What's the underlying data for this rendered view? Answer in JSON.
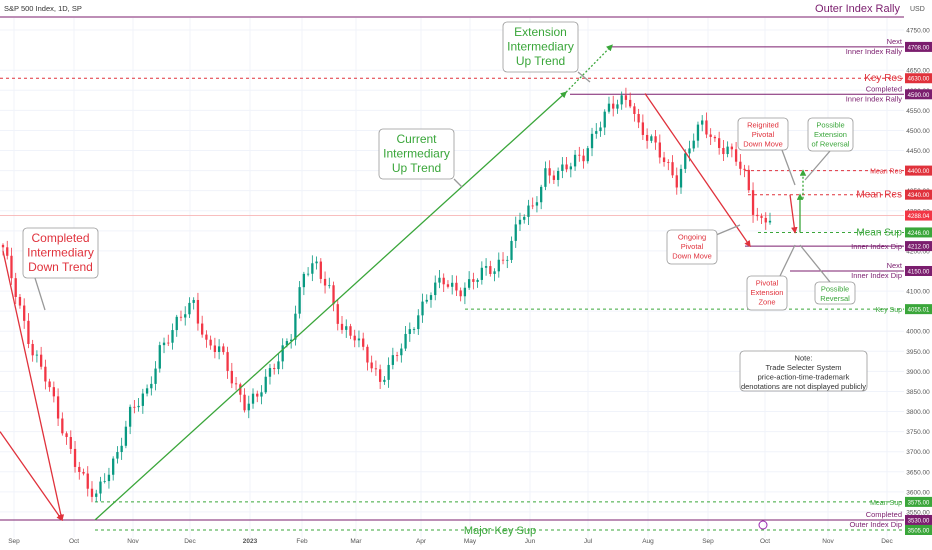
{
  "header": {
    "symbol_label": "S&P 500 Index, 1D, SP",
    "currency": "USD"
  },
  "colors": {
    "up": "#089981",
    "down": "#f23645",
    "green_ann": "#3aa63a",
    "red_ann": "#e0323c",
    "purple": "#7b1e6e",
    "grid": "#f0f3fa",
    "axis_text": "#555555"
  },
  "chart_data": {
    "type": "candlestick",
    "ylim": [
      3505,
      4780
    ],
    "y_ticks": [
      3550,
      3600,
      3650,
      3700,
      3750,
      3800,
      3850,
      3900,
      3950,
      4000,
      4050,
      4100,
      4200,
      4250,
      4300,
      4350,
      4400,
      4450,
      4500,
      4550,
      4600,
      4650,
      4750
    ],
    "x_ticks": [
      "Sep",
      "Oct",
      "Nov",
      "Dec",
      "2023",
      "Feb",
      "Mar",
      "Apr",
      "May",
      "Jun",
      "Jul",
      "Aug",
      "Sep",
      "Oct",
      "Nov",
      "Dec"
    ],
    "anchors": [
      {
        "i": 0,
        "c": 4200
      },
      {
        "i": 3,
        "c": 4100
      },
      {
        "i": 7,
        "c": 3950
      },
      {
        "i": 10,
        "c": 3880
      },
      {
        "i": 13,
        "c": 3790
      },
      {
        "i": 17,
        "c": 3680
      },
      {
        "i": 20,
        "c": 3600
      },
      {
        "i": 22,
        "c": 3585
      },
      {
        "i": 24,
        "c": 3640
      },
      {
        "i": 27,
        "c": 3700
      },
      {
        "i": 30,
        "c": 3790
      },
      {
        "i": 34,
        "c": 3850
      },
      {
        "i": 37,
        "c": 3960
      },
      {
        "i": 40,
        "c": 3995
      },
      {
        "i": 43,
        "c": 4050
      },
      {
        "i": 45,
        "c": 4075
      },
      {
        "i": 48,
        "c": 3970
      },
      {
        "i": 51,
        "c": 3950
      },
      {
        "i": 54,
        "c": 3880
      },
      {
        "i": 57,
        "c": 3825
      },
      {
        "i": 60,
        "c": 3835
      },
      {
        "i": 63,
        "c": 3890
      },
      {
        "i": 66,
        "c": 3960
      },
      {
        "i": 68,
        "c": 4000
      },
      {
        "i": 71,
        "c": 4140
      },
      {
        "i": 74,
        "c": 4160
      },
      {
        "i": 77,
        "c": 4110
      },
      {
        "i": 80,
        "c": 4000
      },
      {
        "i": 83,
        "c": 3980
      },
      {
        "i": 86,
        "c": 3940
      },
      {
        "i": 89,
        "c": 3880
      },
      {
        "i": 92,
        "c": 3920
      },
      {
        "i": 95,
        "c": 3980
      },
      {
        "i": 98,
        "c": 4050
      },
      {
        "i": 101,
        "c": 4100
      },
      {
        "i": 104,
        "c": 4120
      },
      {
        "i": 107,
        "c": 4105
      },
      {
        "i": 110,
        "c": 4120
      },
      {
        "i": 113,
        "c": 4140
      },
      {
        "i": 116,
        "c": 4155
      },
      {
        "i": 119,
        "c": 4200
      },
      {
        "i": 122,
        "c": 4280
      },
      {
        "i": 125,
        "c": 4300
      },
      {
        "i": 128,
        "c": 4400
      },
      {
        "i": 131,
        "c": 4395
      },
      {
        "i": 134,
        "c": 4410
      },
      {
        "i": 137,
        "c": 4440
      },
      {
        "i": 140,
        "c": 4510
      },
      {
        "i": 143,
        "c": 4550
      },
      {
        "i": 146,
        "c": 4570
      },
      {
        "i": 148,
        "c": 4580
      },
      {
        "i": 150,
        "c": 4515
      },
      {
        "i": 153,
        "c": 4470
      },
      {
        "i": 156,
        "c": 4420
      },
      {
        "i": 159,
        "c": 4380
      },
      {
        "i": 162,
        "c": 4465
      },
      {
        "i": 165,
        "c": 4510
      },
      {
        "i": 168,
        "c": 4470
      },
      {
        "i": 171,
        "c": 4460
      },
      {
        "i": 173,
        "c": 4430
      },
      {
        "i": 175,
        "c": 4380
      },
      {
        "i": 177,
        "c": 4300
      },
      {
        "i": 179,
        "c": 4275
      },
      {
        "i": 181,
        "c": 4295
      }
    ],
    "last_price": 4288.04,
    "levels": [
      {
        "value": 4708.0,
        "top_label": "Next",
        "label": "Inner Index Rally",
        "kind": "purple"
      },
      {
        "value": 4630.0,
        "label": "Key Res",
        "kind": "red_dash_big"
      },
      {
        "value": 4590.0,
        "top_label": "Completed",
        "label": "Inner Index Rally",
        "kind": "purple"
      },
      {
        "value": 4400.0,
        "label": "Mean Res",
        "kind": "red_dash_small"
      },
      {
        "value": 4340.0,
        "label": "Mean Res",
        "kind": "red_dash_big"
      },
      {
        "value": 4246.0,
        "label": "Mean Sup",
        "kind": "green_dash_big"
      },
      {
        "value": 4212.0,
        "label": "Inner Index Dip",
        "kind": "purple"
      },
      {
        "value": 4150.0,
        "top_label": "Next",
        "label": "Inner Index Dip",
        "kind": "purple"
      },
      {
        "value": 4055.01,
        "label": "Key Sup",
        "kind": "green_dash_small"
      },
      {
        "value": 3575.0,
        "label": "Mean Sup",
        "kind": "green_dash_small"
      },
      {
        "value": 3530.0,
        "top_label": "Completed",
        "label": "Outer Index Dip",
        "kind": "purple"
      },
      {
        "value": 3505.0,
        "label": "Major Key Sup",
        "kind": "green_dash_center"
      }
    ],
    "price_tags": {
      "last": "4288.04",
      "l4708": "4708.00",
      "l4630": "4630.00",
      "l4590": "4590.00",
      "l4400": "4400.00",
      "l4340": "4340.00",
      "l4246": "4246.00",
      "l4212": "4212.00",
      "l4150": "4150.00",
      "l4055": "4055.01",
      "l3575": "3575.00",
      "l3530": "3530.00",
      "l3505": "3505.00"
    },
    "top_right_label": "Outer Index Rally",
    "annotations": {
      "completed_down": [
        "Completed",
        "Intermediary",
        "Down Trend"
      ],
      "current_up": [
        "Current",
        "Intermediary",
        "Up Trend"
      ],
      "extension_up": [
        "Extension",
        "Intermediary",
        "Up Trend"
      ],
      "reignited": [
        "Reignited",
        "Pivotal",
        "Down Move"
      ],
      "ongoing": [
        "Ongoing",
        "Pivotal",
        "Down Move"
      ],
      "possible_ext": [
        "Possible",
        "Extension",
        "of Reversal"
      ],
      "pivotal_zone": [
        "Pivotal",
        "Extension",
        "Zone"
      ],
      "possible_rev": [
        "Possible",
        "Reversal"
      ],
      "note": [
        "Note:",
        "Trade Selecter System",
        "price-action-time-trademark",
        "denotations are not displayed publicly"
      ]
    }
  }
}
